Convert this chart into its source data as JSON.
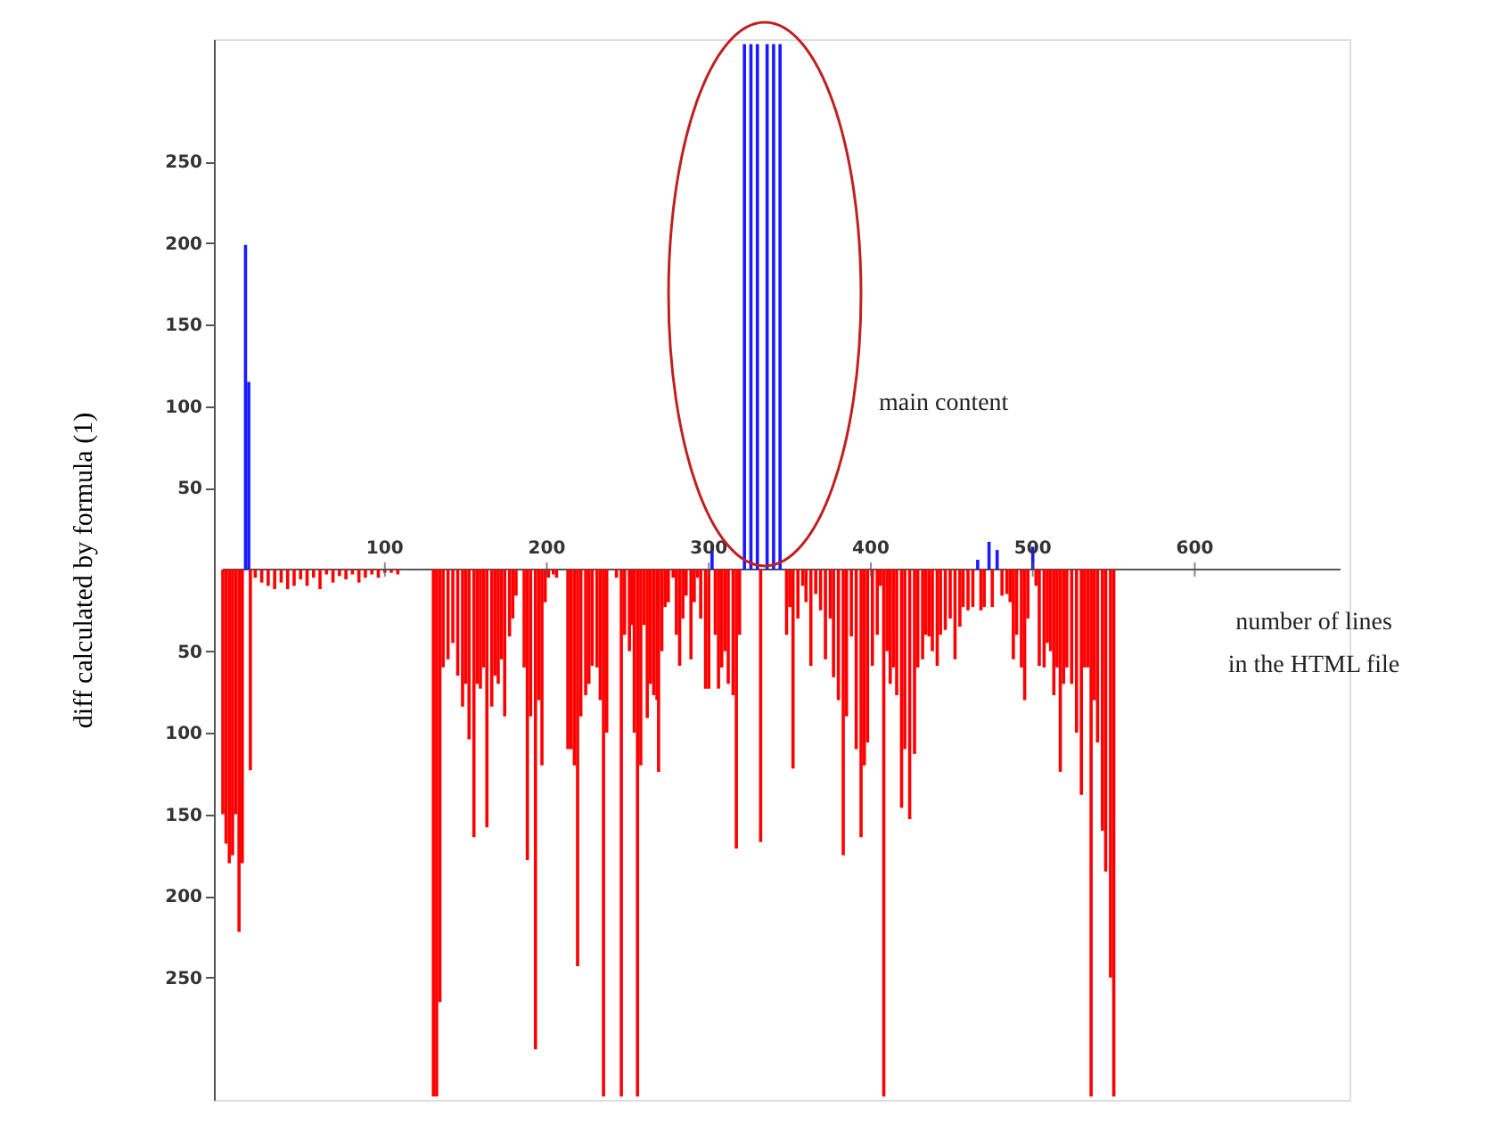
{
  "chart_data": {
    "type": "bar",
    "ylabel": "diff calculated by formula (1)",
    "xlabel": "number of lines\nin the HTML file",
    "annotations": [
      "main content"
    ],
    "xlim": [
      0,
      690
    ],
    "xticks": [
      100,
      200,
      300,
      400,
      500,
      600
    ],
    "ylim": [
      -325,
      325
    ],
    "yticks": [
      {
        "value": -250,
        "label": "250"
      },
      {
        "value": -200,
        "label": "200"
      },
      {
        "value": -150,
        "label": "150"
      },
      {
        "value": -100,
        "label": "100"
      },
      {
        "value": -50,
        "label": "50"
      },
      50,
      100,
      150,
      200,
      250
    ],
    "grid": false,
    "series": [
      {
        "color": "#ff0000",
        "x": [
          0,
          2,
          4,
          6,
          8,
          10,
          12,
          17,
          20,
          24,
          28,
          32,
          36,
          40,
          44,
          48,
          52,
          56,
          60,
          64,
          68,
          72,
          76,
          80,
          84,
          88,
          92,
          96,
          100,
          104,
          108,
          130,
          132,
          134,
          136,
          139,
          142,
          145,
          148,
          150,
          152,
          155,
          157,
          159,
          161,
          163,
          166,
          168,
          170,
          172,
          174,
          177,
          179,
          181,
          186,
          188,
          190,
          193,
          195,
          197,
          199,
          201,
          204,
          206,
          213,
          215,
          217,
          219,
          221,
          224,
          226,
          228,
          231,
          233,
          235,
          237,
          243,
          246,
          248,
          251,
          253,
          254,
          256,
          258,
          260,
          262,
          264,
          266,
          268,
          269,
          271,
          273,
          275,
          278,
          280,
          282,
          284,
          286,
          289,
          291,
          293,
          295,
          298,
          300,
          304,
          306,
          308,
          310,
          312,
          315,
          317,
          319,
          332,
          348,
          350,
          352,
          355,
          358,
          360,
          363,
          366,
          369,
          372,
          375,
          377,
          380,
          383,
          385,
          388,
          391,
          394,
          396,
          398,
          401,
          404,
          406,
          408,
          410,
          412,
          414,
          416,
          419,
          421,
          424,
          427,
          429,
          432,
          434,
          436,
          438,
          441,
          443,
          446,
          449,
          452,
          455,
          457,
          460,
          463,
          468,
          470,
          475,
          481,
          484,
          486,
          488,
          490,
          493,
          495,
          497,
          502,
          504,
          507,
          509,
          511,
          513,
          515,
          517,
          519,
          521,
          524,
          527,
          530,
          532,
          534,
          536,
          538,
          540,
          543,
          545,
          548,
          550
        ],
        "values": [
          -150,
          -168,
          -180,
          -175,
          -150,
          -222,
          -180,
          -123,
          -5,
          -8,
          -10,
          -12,
          -8,
          -12,
          -10,
          -6,
          -10,
          -5,
          -12,
          -3,
          -8,
          -4,
          -6,
          -3,
          -8,
          -5,
          -3,
          -5,
          -2,
          -2,
          -3,
          -323,
          -323,
          -265,
          -60,
          -55,
          -45,
          -65,
          -84,
          -70,
          -104,
          -164,
          -70,
          -73,
          -60,
          -158,
          -84,
          -65,
          -70,
          -55,
          -90,
          -41,
          -30,
          -16,
          -60,
          -178,
          -90,
          -294,
          -80,
          -120,
          -20,
          -5,
          -3,
          -5,
          -110,
          -110,
          -120,
          -243,
          -90,
          -77,
          -70,
          -59,
          -60,
          -80,
          -323,
          -100,
          -5,
          -323,
          -40,
          -50,
          -34,
          -100,
          -323,
          -120,
          -34,
          -91,
          -70,
          -77,
          -80,
          -124,
          -50,
          -23,
          -20,
          -5,
          -40,
          -59,
          -30,
          -16,
          -55,
          -20,
          -5,
          -30,
          -73,
          -73,
          -40,
          -73,
          -60,
          -50,
          -70,
          -77,
          -171,
          -40,
          -167,
          -40,
          -23,
          -122,
          -30,
          -10,
          -20,
          -59,
          -15,
          -25,
          -55,
          -30,
          -66,
          -80,
          -175,
          -90,
          -41,
          -110,
          -164,
          -120,
          -106,
          -59,
          -40,
          -10,
          -323,
          -50,
          -70,
          -60,
          -77,
          -146,
          -110,
          -153,
          -113,
          -60,
          -55,
          -40,
          -41,
          -50,
          -59,
          -40,
          -37,
          -30,
          -55,
          -35,
          -23,
          -25,
          -23,
          -25,
          -23,
          -23,
          -16,
          -15,
          -20,
          -55,
          -40,
          -60,
          -80,
          -30,
          -10,
          -59,
          -60,
          -45,
          -50,
          -77,
          -60,
          -124,
          -70,
          -60,
          -70,
          -100,
          -138,
          -60,
          -60,
          -323,
          -80,
          -106,
          -160,
          -185,
          -250,
          -323
        ]
      },
      {
        "color": "#1a1aff",
        "x": [
          14,
          16,
          302,
          322,
          326,
          330,
          336,
          340,
          344,
          466,
          473,
          478,
          500
        ],
        "values": [
          199,
          115,
          15,
          322,
          322,
          322,
          322,
          322,
          322,
          6,
          17,
          12,
          14
        ]
      }
    ]
  }
}
